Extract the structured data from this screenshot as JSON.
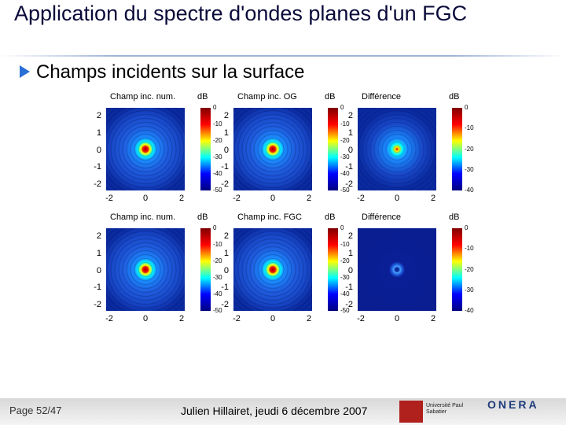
{
  "header": {
    "title": "Application du spectre d'ondes planes d'un FGC"
  },
  "bullet": "Champs incidents sur la surface",
  "figure": {
    "x_ticks": [
      "-2",
      "0",
      "2"
    ],
    "y_ticks": [
      "2",
      "1",
      "0",
      "-1",
      "-2"
    ],
    "rows": [
      {
        "panels": [
          {
            "title": "Champ inc. num.",
            "unit": "dB",
            "colorbar_ticks": [
              "0",
              "-10",
              "-20",
              "-30",
              "-40",
              "-50"
            ]
          },
          {
            "title": "Champ inc. OG",
            "unit": "dB",
            "colorbar_ticks": [
              "0",
              "-10",
              "-20",
              "-30",
              "-40",
              "-50"
            ]
          },
          {
            "title": "Différence",
            "unit": "dB",
            "colorbar_ticks": [
              "0",
              "-10",
              "-20",
              "-30",
              "-40"
            ]
          }
        ]
      },
      {
        "panels": [
          {
            "title": "Champ inc. num.",
            "unit": "dB",
            "colorbar_ticks": [
              "0",
              "-10",
              "-20",
              "-30",
              "-40",
              "-50"
            ]
          },
          {
            "title": "Champ inc. FGC",
            "unit": "dB",
            "colorbar_ticks": [
              "0",
              "-10",
              "-20",
              "-30",
              "-40",
              "-50"
            ]
          },
          {
            "title": "Différence",
            "unit": "dB",
            "colorbar_ticks": [
              "0",
              "-10",
              "-20",
              "-30",
              "-40"
            ]
          }
        ]
      }
    ]
  },
  "footer": {
    "page": "Page 52/47",
    "author": "Julien Hillairet, jeudi 6 décembre 2007",
    "logo_left": "Université Paul Sabatier",
    "logo_right": "ONERA"
  }
}
